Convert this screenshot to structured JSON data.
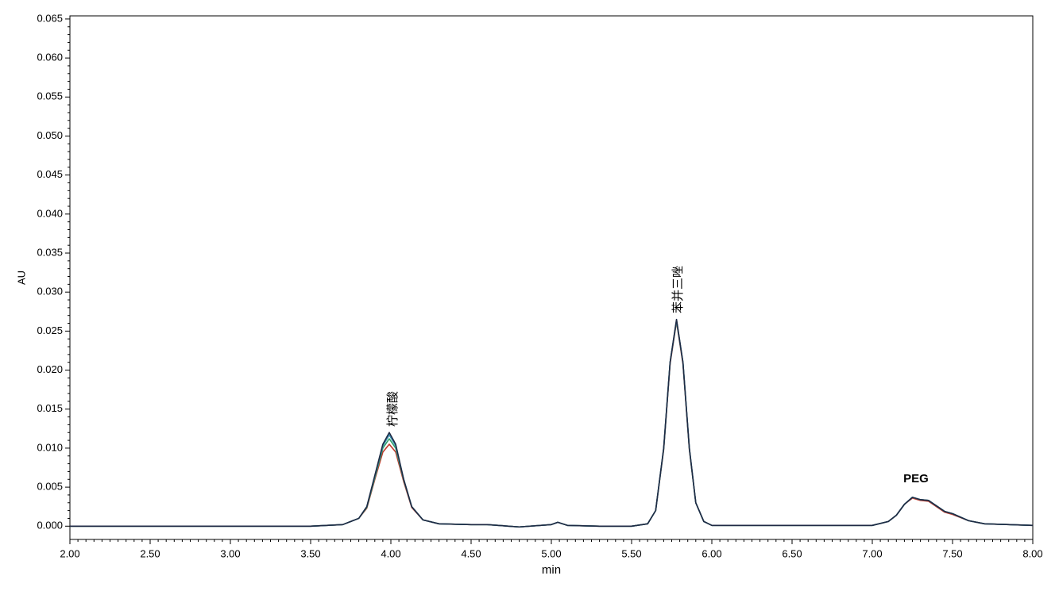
{
  "chart_data": {
    "type": "line",
    "xlabel": "min",
    "ylabel": "AU",
    "xlim": [
      2.0,
      8.0
    ],
    "ylim": [
      -0.0017,
      0.0654
    ],
    "xticks": [
      {
        "value": 2.0,
        "label": "2.00"
      },
      {
        "value": 2.5,
        "label": "2.50"
      },
      {
        "value": 3.0,
        "label": "3.00"
      },
      {
        "value": 3.5,
        "label": "3.50"
      },
      {
        "value": 4.0,
        "label": "4.00"
      },
      {
        "value": 4.5,
        "label": "4.50"
      },
      {
        "value": 5.0,
        "label": "5.00"
      },
      {
        "value": 5.5,
        "label": "5.50"
      },
      {
        "value": 6.0,
        "label": "6.00"
      },
      {
        "value": 6.5,
        "label": "6.50"
      },
      {
        "value": 7.0,
        "label": "7.00"
      },
      {
        "value": 7.5,
        "label": "7.50"
      },
      {
        "value": 8.0,
        "label": "8.00"
      }
    ],
    "yticks": [
      {
        "value": 0.0,
        "label": "0.000"
      },
      {
        "value": 0.005,
        "label": "0.005"
      },
      {
        "value": 0.01,
        "label": "0.010"
      },
      {
        "value": 0.015,
        "label": "0.015"
      },
      {
        "value": 0.02,
        "label": "0.020"
      },
      {
        "value": 0.025,
        "label": "0.025"
      },
      {
        "value": 0.03,
        "label": "0.030"
      },
      {
        "value": 0.035,
        "label": "0.035"
      },
      {
        "value": 0.04,
        "label": "0.040"
      },
      {
        "value": 0.045,
        "label": "0.045"
      },
      {
        "value": 0.05,
        "label": "0.050"
      },
      {
        "value": 0.055,
        "label": "0.055"
      },
      {
        "value": 0.06,
        "label": "0.060"
      },
      {
        "value": 0.065,
        "label": "0.065"
      }
    ],
    "annotations": [
      "柠檬酸",
      "苯并三唑",
      "PEG"
    ],
    "x": [
      2.0,
      2.5,
      3.0,
      3.5,
      3.7,
      3.75,
      3.8,
      3.85,
      3.9,
      3.95,
      3.99,
      4.03,
      4.08,
      4.13,
      4.2,
      4.3,
      4.5,
      4.6,
      4.8,
      5.0,
      5.04,
      5.1,
      5.3,
      5.5,
      5.6,
      5.65,
      5.7,
      5.74,
      5.78,
      5.82,
      5.86,
      5.9,
      5.95,
      6.0,
      6.5,
      7.0,
      7.1,
      7.15,
      7.2,
      7.25,
      7.3,
      7.35,
      7.4,
      7.45,
      7.5,
      7.6,
      7.7,
      8.0
    ],
    "series": [
      {
        "color": "#c0392b",
        "values": [
          0,
          0,
          0,
          0,
          0.0002,
          0.0006,
          0.001,
          0.0023,
          0.006,
          0.0095,
          0.0105,
          0.0095,
          0.0057,
          0.0024,
          0.0008,
          0.0003,
          0.0002,
          0.0002,
          -0.0001,
          0.0002,
          0.0005,
          0.0001,
          0,
          0,
          0.0003,
          0.002,
          0.0098,
          0.0208,
          0.0262,
          0.0208,
          0.0098,
          0.003,
          0.0006,
          0.0001,
          0.0001,
          0.0001,
          0.0006,
          0.0014,
          0.0028,
          0.0036,
          0.0033,
          0.0032,
          0.0025,
          0.0018,
          0.0015,
          0.0007,
          0.0003,
          0.0001
        ]
      },
      {
        "color": "#2e9e6a",
        "values": [
          0,
          0,
          0,
          0,
          0.0002,
          0.0006,
          0.001,
          0.0024,
          0.0062,
          0.01,
          0.0112,
          0.01,
          0.0059,
          0.0025,
          0.0008,
          0.0003,
          0.0002,
          0.0002,
          -0.0001,
          0.0002,
          0.0005,
          0.0001,
          0,
          0,
          0.0003,
          0.002,
          0.0099,
          0.021,
          0.0263,
          0.021,
          0.0099,
          0.003,
          0.0006,
          0.0001,
          0.0001,
          0.0001,
          0.0006,
          0.0014,
          0.0028,
          0.0037,
          0.0034,
          0.0033,
          0.0026,
          0.0019,
          0.0016,
          0.0007,
          0.0003,
          0.0001
        ]
      },
      {
        "color": "#3a8fb0",
        "values": [
          0,
          0,
          0,
          0,
          0.0002,
          0.0006,
          0.001,
          0.0025,
          0.0064,
          0.0103,
          0.0117,
          0.0103,
          0.006,
          0.0025,
          0.0008,
          0.0003,
          0.0002,
          0.0002,
          -0.0001,
          0.0002,
          0.0005,
          0.0001,
          0,
          0,
          0.0003,
          0.002,
          0.01,
          0.021,
          0.0264,
          0.021,
          0.01,
          0.003,
          0.0006,
          0.0001,
          0.0001,
          0.0001,
          0.0006,
          0.0014,
          0.0028,
          0.0037,
          0.0034,
          0.0033,
          0.0026,
          0.0019,
          0.0016,
          0.0007,
          0.0003,
          0.0001
        ]
      },
      {
        "color": "#1f2a44",
        "values": [
          0,
          0,
          0,
          0,
          0.0002,
          0.0006,
          0.001,
          0.0025,
          0.0065,
          0.0105,
          0.012,
          0.0105,
          0.006,
          0.0025,
          0.0008,
          0.0003,
          0.0002,
          0.0002,
          -0.0001,
          0.0002,
          0.0005,
          0.0001,
          0,
          0,
          0.0003,
          0.002,
          0.01,
          0.021,
          0.0265,
          0.021,
          0.01,
          0.003,
          0.0006,
          0.0001,
          0.0001,
          0.0001,
          0.0006,
          0.0014,
          0.0028,
          0.0037,
          0.0034,
          0.0033,
          0.0026,
          0.0019,
          0.0016,
          0.0007,
          0.0003,
          0.0001
        ]
      }
    ]
  }
}
